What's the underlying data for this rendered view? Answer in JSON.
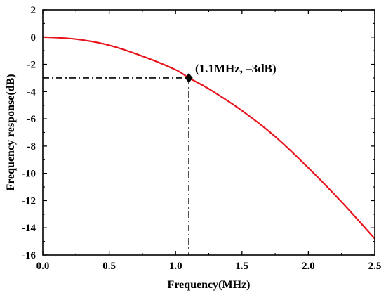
{
  "chart_data": {
    "type": "line",
    "title": "",
    "xlabel": "Frequency(MHz)",
    "ylabel": "Frequency response(dB)",
    "xlim": [
      0.0,
      2.5
    ],
    "ylim": [
      -16,
      2
    ],
    "xticks": [
      0.0,
      0.5,
      1.0,
      1.5,
      2.0,
      2.5
    ],
    "xtick_labels": [
      "0.0",
      "0.5",
      "1.0",
      "1.5",
      "2.0",
      "2.5"
    ],
    "yticks": [
      2,
      0,
      -2,
      -4,
      -6,
      -8,
      -10,
      -12,
      -14,
      -16
    ],
    "ytick_labels": [
      "2",
      "0",
      "-2",
      "-4",
      "-6",
      "-8",
      "-10",
      "-12",
      "-14",
      "-16"
    ],
    "grid": false,
    "series": [
      {
        "color": "#e8141b",
        "x": [
          0.0,
          0.25,
          0.5,
          0.75,
          1.0,
          1.1,
          1.25,
          1.5,
          1.75,
          2.0,
          2.25,
          2.5
        ],
        "y": [
          0.0,
          -0.15,
          -0.6,
          -1.4,
          -2.4,
          -3.0,
          -3.8,
          -5.4,
          -7.3,
          -9.6,
          -12.1,
          -14.8
        ]
      }
    ],
    "marker": {
      "x": 1.1,
      "y": -3.0,
      "shape": "diamond",
      "color": "#000000"
    },
    "guide_lines": {
      "style": "dash-dot",
      "color": "#000000"
    },
    "annotation": "(1.1MHz, –3dB)"
  }
}
